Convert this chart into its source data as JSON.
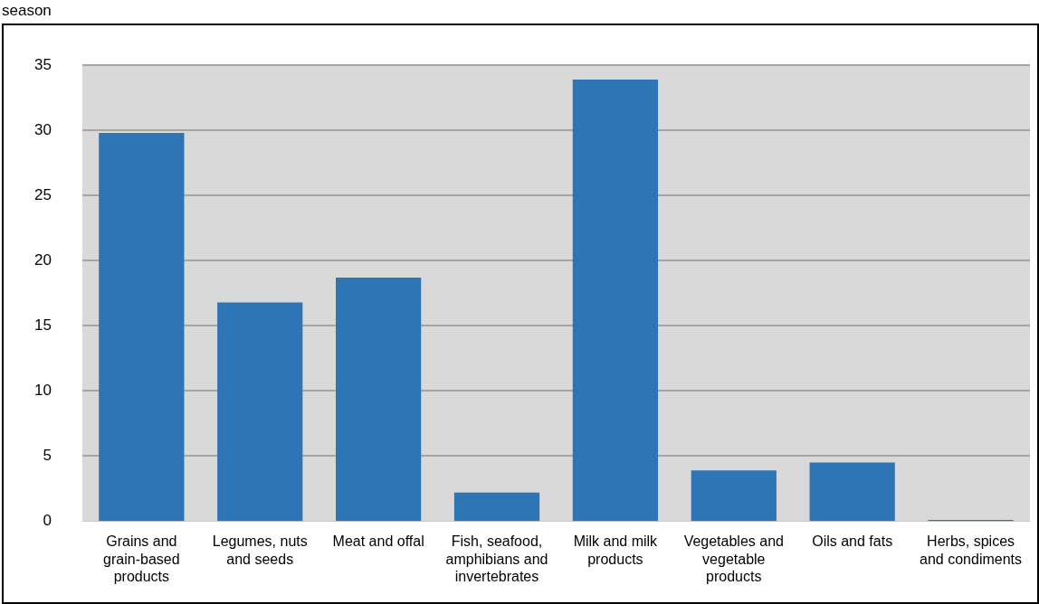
{
  "chart_data": {
    "type": "bar",
    "title": "season",
    "categories": [
      "Grains and grain-based products",
      "Legumes, nuts and seeds",
      "Meat and offal",
      "Fish, seafood, amphibians and invertebrates",
      "Milk and milk products",
      "Vegetables and vegetable products",
      "Oils and fats",
      "Herbs, spices and condiments"
    ],
    "values": [
      29.8,
      16.8,
      18.7,
      2.2,
      33.9,
      3.9,
      4.5,
      0.1
    ],
    "color": "#2e75b6",
    "ylim": [
      0,
      35
    ],
    "yticks": [
      0,
      5,
      10,
      15,
      20,
      25,
      30,
      35
    ],
    "grid": "y",
    "legend": false
  }
}
